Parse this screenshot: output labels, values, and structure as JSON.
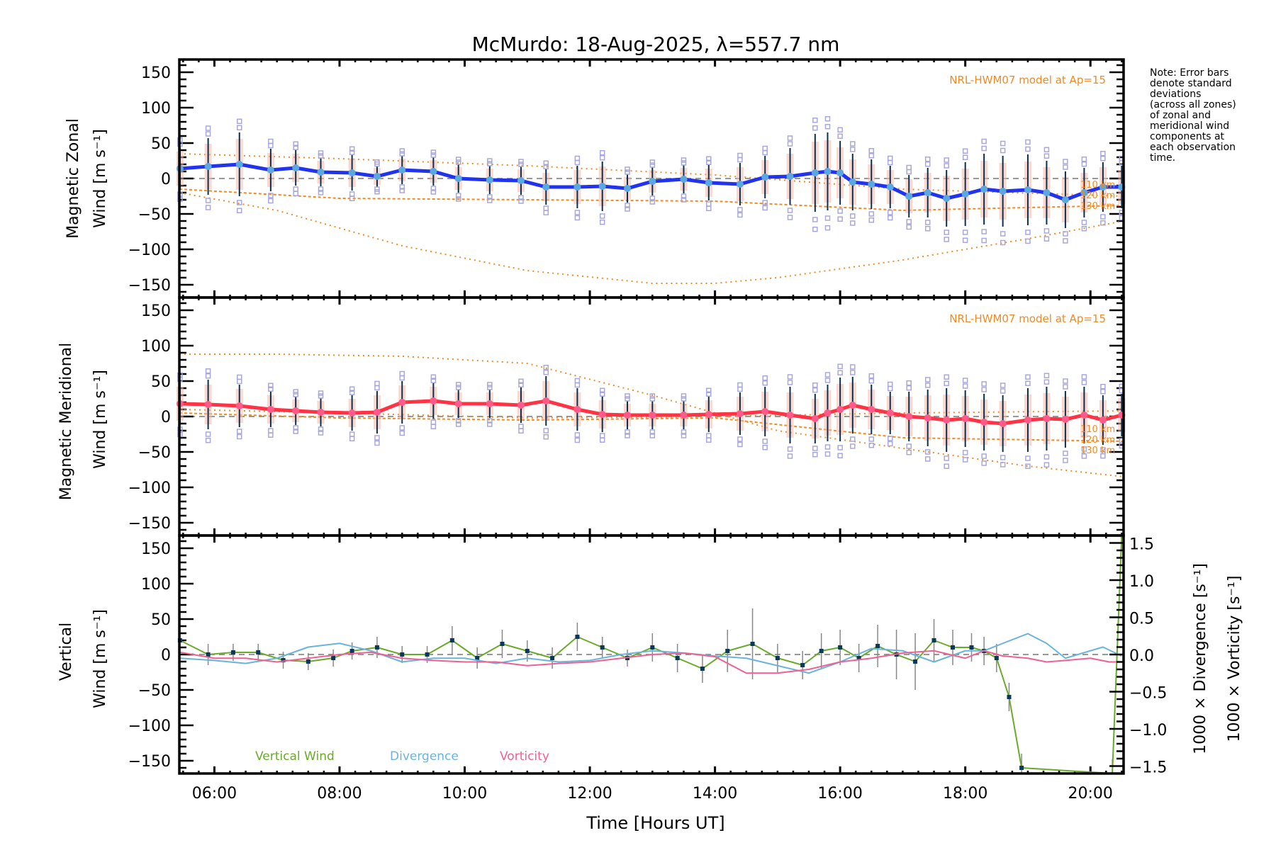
{
  "title": "McMurdo: 18-Aug-2025, λ=557.7 nm",
  "note": "Note: Error bars\ndenote standard\ndeviations\n(across all zones)\nof zonal and\nmeridional wind\ncomponents at\neach observation\ntime.",
  "colors": {
    "zonal": "#2233ee",
    "meridional": "#ff3344",
    "vertical": "#6aaa2a",
    "divergence": "#6ab4dc",
    "vorticity": "#f06090",
    "model": "#f08a24",
    "scatter": "#a8a8dc",
    "marker_zonal": "#5aa8e0",
    "marker_meridional": "#ff5a8a"
  },
  "chart_data": [
    {
      "type": "line",
      "panel": "zonal",
      "title": "McMurdo: 18-Aug-2025, λ=557.7 nm",
      "ylabel_line1": "Magnetic Zonal",
      "ylabel_line2": "Wind [m s⁻¹]",
      "ylim": [
        -168,
        168
      ],
      "yticks": [
        150,
        100,
        50,
        0,
        -50,
        -100,
        -150
      ],
      "xlim": [
        5.44,
        20.53
      ],
      "model_label": "NRL-HWM07 model at Ap=15",
      "km_labels": [
        "110 km",
        "120 km",
        "130 km"
      ],
      "series": [
        {
          "name": "Zonal wind",
          "x": [
            5.45,
            5.9,
            6.4,
            6.9,
            7.3,
            7.7,
            8.2,
            8.6,
            9.0,
            9.5,
            9.9,
            10.4,
            10.9,
            11.3,
            11.8,
            12.2,
            12.6,
            13.0,
            13.5,
            13.9,
            14.4,
            14.8,
            15.2,
            15.6,
            15.8,
            16.0,
            16.2,
            16.5,
            16.8,
            17.1,
            17.4,
            17.7,
            18.0,
            18.3,
            18.6,
            19.0,
            19.3,
            19.6,
            19.9,
            20.2,
            20.5
          ],
          "y": [
            14,
            17,
            20,
            12,
            15,
            9,
            8,
            3,
            12,
            10,
            0,
            -2,
            -3,
            -12,
            -12,
            -11,
            -14,
            -4,
            -1,
            -6,
            -8,
            2,
            3,
            8,
            10,
            8,
            -5,
            -8,
            -12,
            -25,
            -20,
            -28,
            -22,
            -15,
            -18,
            -16,
            -20,
            -30,
            -20,
            -12,
            -12
          ],
          "err": [
            30,
            40,
            45,
            30,
            25,
            20,
            25,
            15,
            20,
            20,
            20,
            20,
            20,
            25,
            30,
            35,
            20,
            20,
            20,
            25,
            30,
            30,
            40,
            55,
            55,
            45,
            40,
            35,
            30,
            30,
            35,
            40,
            45,
            50,
            50,
            50,
            45,
            40,
            35,
            35,
            30
          ]
        },
        {
          "name": "HWM07 110 km",
          "x": [
            5.44,
            8,
            11,
            14,
            17,
            20.53
          ],
          "y": [
            35,
            28,
            18,
            5,
            -15,
            -25
          ]
        },
        {
          "name": "HWM07 120 km",
          "x": [
            5.44,
            8,
            11,
            14,
            17,
            20.53
          ],
          "y": [
            -15,
            -28,
            -30,
            -32,
            -45,
            -38
          ]
        },
        {
          "name": "HWM07 130 km",
          "x": [
            5.44,
            7,
            9,
            11,
            13,
            14,
            15,
            17,
            19,
            20.53
          ],
          "y": [
            -20,
            -45,
            -95,
            -130,
            -148,
            -148,
            -140,
            -115,
            -85,
            -60
          ]
        }
      ]
    },
    {
      "type": "line",
      "panel": "meridional",
      "ylabel_line1": "Magnetic Meridional",
      "ylabel_line2": "Wind [m s⁻¹]",
      "ylim": [
        -168,
        168
      ],
      "yticks": [
        150,
        100,
        50,
        0,
        -50,
        -100,
        -150
      ],
      "xlim": [
        5.44,
        20.53
      ],
      "model_label": "NRL-HWM07 model at Ap=15",
      "km_labels": [
        "110 km",
        "120 km",
        "130 km"
      ],
      "series": [
        {
          "name": "Meridional wind",
          "x": [
            5.45,
            5.9,
            6.4,
            6.9,
            7.3,
            7.7,
            8.2,
            8.6,
            9.0,
            9.5,
            9.9,
            10.4,
            10.9,
            11.3,
            11.8,
            12.2,
            12.6,
            13.0,
            13.5,
            13.9,
            14.4,
            14.8,
            15.2,
            15.6,
            15.8,
            16.0,
            16.2,
            16.5,
            16.8,
            17.1,
            17.4,
            17.7,
            18.0,
            18.3,
            18.6,
            19.0,
            19.3,
            19.6,
            19.9,
            20.2,
            20.5
          ],
          "y": [
            18,
            17,
            15,
            10,
            8,
            6,
            5,
            6,
            20,
            22,
            18,
            18,
            16,
            22,
            10,
            3,
            2,
            2,
            2,
            3,
            4,
            7,
            2,
            -3,
            5,
            10,
            16,
            10,
            5,
            0,
            -2,
            -5,
            -3,
            -8,
            -10,
            -5,
            -3,
            -4,
            2,
            -5,
            2
          ],
          "err": [
            30,
            35,
            30,
            25,
            20,
            20,
            25,
            30,
            30,
            25,
            20,
            20,
            25,
            35,
            30,
            25,
            20,
            20,
            20,
            25,
            30,
            35,
            40,
            35,
            40,
            45,
            40,
            35,
            30,
            35,
            40,
            45,
            40,
            40,
            40,
            45,
            45,
            40,
            40,
            35,
            30
          ]
        },
        {
          "name": "HWM07 110 km",
          "x": [
            5.44,
            8,
            11,
            14,
            17,
            20.53
          ],
          "y": [
            10,
            5,
            -2,
            0,
            5,
            8
          ]
        },
        {
          "name": "HWM07 120 km",
          "x": [
            5.44,
            8,
            11,
            14,
            17,
            20.53
          ],
          "y": [
            5,
            -2,
            -5,
            -2,
            -30,
            -35
          ]
        },
        {
          "name": "HWM07 130 km",
          "x": [
            5.44,
            7,
            9,
            11,
            13,
            15,
            17,
            19,
            20.53
          ],
          "y": [
            88,
            88,
            85,
            75,
            30,
            -20,
            -45,
            -70,
            -85
          ]
        }
      ]
    },
    {
      "type": "line",
      "panel": "vertical",
      "ylabel_line1": "Vertical",
      "ylabel_line2": "Wind [m s⁻¹]",
      "y2label_div": "1000 × Divergence [s⁻¹]",
      "y2label_vor": "1000 × Vorticity [s⁻¹]",
      "ylim": [
        -168,
        168
      ],
      "yticks": [
        150,
        100,
        50,
        0,
        -50,
        -100,
        -150
      ],
      "y2lim": [
        -1.6,
        1.6
      ],
      "y2ticks": [
        "1.5",
        "1.0",
        "0.5",
        "0.0",
        "-0.5",
        "-1.0",
        "-1.5"
      ],
      "y2tick_values": [
        1.5,
        1.0,
        0.5,
        0.0,
        -0.5,
        -1.0,
        -1.5
      ],
      "xlim": [
        5.44,
        20.53
      ],
      "xlabel": "Time [Hours UT]",
      "xticks": [
        "06:00",
        "08:00",
        "10:00",
        "12:00",
        "14:00",
        "16:00",
        "18:00",
        "20:00"
      ],
      "xtick_values": [
        6,
        8,
        10,
        12,
        14,
        16,
        18,
        20
      ],
      "legend": [
        "Vertical Wind",
        "Divergence",
        "Vorticity"
      ],
      "series": [
        {
          "name": "Vertical Wind",
          "x": [
            5.45,
            5.9,
            6.3,
            6.7,
            7.1,
            7.5,
            7.9,
            8.2,
            8.6,
            9.0,
            9.4,
            9.8,
            10.2,
            10.6,
            11.0,
            11.4,
            11.8,
            12.2,
            12.6,
            13.0,
            13.4,
            13.8,
            14.2,
            14.6,
            15.0,
            15.4,
            15.7,
            16.0,
            16.3,
            16.6,
            16.9,
            17.2,
            17.5,
            17.8,
            18.1,
            18.3,
            18.5,
            18.7,
            18.9,
            20.35,
            20.5
          ],
          "y": [
            20,
            0,
            3,
            3,
            -8,
            -10,
            -5,
            5,
            10,
            0,
            0,
            20,
            -5,
            15,
            5,
            -5,
            25,
            10,
            -5,
            10,
            -5,
            -20,
            5,
            15,
            -5,
            -15,
            5,
            10,
            -5,
            12,
            0,
            -10,
            20,
            10,
            10,
            5,
            -5,
            -60,
            -160,
            -168,
            168
          ],
          "err": [
            15,
            15,
            12,
            12,
            12,
            12,
            12,
            12,
            15,
            12,
            12,
            20,
            15,
            20,
            15,
            15,
            20,
            15,
            12,
            20,
            20,
            20,
            30,
            50,
            20,
            20,
            25,
            25,
            20,
            30,
            35,
            40,
            30,
            25,
            20,
            20,
            20,
            20,
            20,
            20,
            20
          ]
        },
        {
          "name": "Divergence",
          "x": [
            5.45,
            6.0,
            6.5,
            7.0,
            7.5,
            8.0,
            8.5,
            9.0,
            9.5,
            10.0,
            10.5,
            11.0,
            11.5,
            12.0,
            12.5,
            13.0,
            13.5,
            14.0,
            14.5,
            15.0,
            15.5,
            16.0,
            16.5,
            17.0,
            17.5,
            18.0,
            18.3,
            18.6,
            19.0,
            19.3,
            19.6,
            20.0,
            20.2,
            20.5
          ],
          "y": [
            -0.05,
            -0.08,
            -0.12,
            -0.05,
            0.1,
            0.15,
            0.05,
            -0.1,
            -0.05,
            -0.05,
            -0.12,
            -0.05,
            -0.1,
            -0.08,
            0.0,
            0.05,
            0.02,
            -0.02,
            -0.05,
            -0.15,
            -0.25,
            -0.1,
            0.08,
            0.05,
            -0.1,
            0.05,
            0.05,
            0.15,
            0.28,
            0.15,
            -0.05,
            0.05,
            0.1,
            -0.02
          ],
          "scale": "right"
        },
        {
          "name": "Vorticity",
          "x": [
            5.45,
            6.0,
            6.5,
            7.0,
            7.5,
            8.0,
            8.5,
            9.0,
            9.5,
            10.0,
            10.5,
            11.0,
            11.5,
            12.0,
            12.5,
            13.0,
            13.5,
            14.0,
            14.5,
            15.0,
            15.5,
            16.0,
            16.5,
            17.0,
            17.5,
            18.0,
            18.3,
            18.6,
            19.0,
            19.3,
            19.6,
            20.0,
            20.3,
            20.5
          ],
          "y": [
            0.03,
            -0.05,
            -0.05,
            -0.1,
            -0.05,
            0.0,
            0.03,
            -0.05,
            -0.08,
            -0.1,
            -0.1,
            -0.15,
            -0.12,
            -0.1,
            -0.05,
            0.0,
            0.02,
            -0.03,
            -0.25,
            -0.25,
            -0.2,
            -0.1,
            -0.05,
            0.02,
            0.05,
            -0.05,
            0.05,
            -0.02,
            -0.05,
            -0.1,
            -0.08,
            -0.05,
            -0.1,
            -0.1
          ],
          "scale": "right"
        }
      ]
    }
  ]
}
